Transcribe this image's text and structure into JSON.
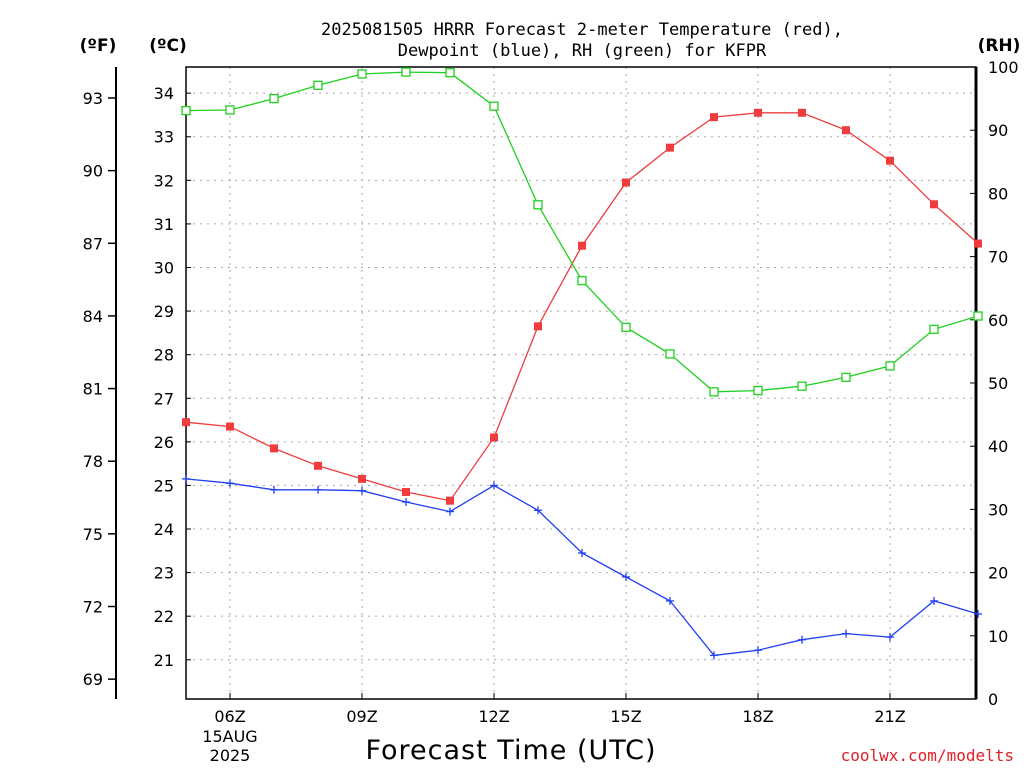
{
  "title": {
    "line1": "2025081505 HRRR Forecast 2-meter Temperature (red),",
    "line2": "Dewpoint (blue), RH (green) for KFPR"
  },
  "units": {
    "fahrenheit": "(ºF)",
    "celsius": "(ºC)",
    "rh": "(RH)"
  },
  "xaxis_title": "Forecast Time (UTC)",
  "credit": "coolwx.com/modelts",
  "colors": {
    "temperature": "#f03c3c",
    "dewpoint": "#2040f0",
    "rh": "#20d020"
  },
  "chart_data": {
    "type": "line",
    "title": "2025081505 HRRR Forecast 2-meter Temperature (red), Dewpoint (blue), RH (green) for KFPR",
    "xlabel": "Forecast Time (UTC)",
    "ylabel_left": "(ºC)",
    "ylabel_left_outer": "(ºF)",
    "ylabel_right": "(RH)",
    "x": [
      "05Z",
      "06Z",
      "07Z",
      "08Z",
      "09Z",
      "10Z",
      "11Z",
      "12Z",
      "13Z",
      "14Z",
      "15Z",
      "16Z",
      "17Z",
      "18Z",
      "19Z",
      "20Z",
      "21Z",
      "22Z",
      "23Z"
    ],
    "x_ticks": [
      {
        "label": "06Z",
        "sub": [
          "15AUG",
          "2025"
        ]
      },
      {
        "label": "09Z"
      },
      {
        "label": "12Z"
      },
      {
        "label": "15Z"
      },
      {
        "label": "18Z"
      },
      {
        "label": "21Z"
      }
    ],
    "celsius_ticks": [
      "21",
      "22",
      "23",
      "24",
      "25",
      "26",
      "27",
      "28",
      "29",
      "30",
      "31",
      "32",
      "33",
      "34"
    ],
    "fahrenheit_ticks": [
      "69",
      "72",
      "75",
      "78",
      "81",
      "84",
      "87",
      "90",
      "93"
    ],
    "rh_ticks": [
      "0",
      "10",
      "20",
      "30",
      "40",
      "50",
      "60",
      "70",
      "80",
      "90",
      "100"
    ],
    "ylim_celsius": [
      20.1,
      34.6
    ],
    "ylim_rh": [
      0,
      100
    ],
    "grid": true,
    "series": [
      {
        "name": "Temperature",
        "axis": "celsius",
        "marker": "filled-square",
        "values": [
          26.45,
          26.35,
          25.85,
          25.45,
          25.15,
          24.85,
          24.65,
          26.1,
          28.65,
          30.5,
          31.95,
          32.75,
          33.45,
          33.55,
          33.55,
          33.15,
          32.45,
          31.45,
          30.55
        ]
      },
      {
        "name": "Dewpoint",
        "axis": "celsius",
        "marker": "plus",
        "values": [
          25.15,
          25.05,
          24.9,
          24.9,
          24.88,
          24.62,
          24.4,
          25.0,
          24.43,
          23.45,
          22.9,
          22.35,
          21.1,
          21.22,
          21.46,
          21.6,
          21.52,
          22.35,
          22.05
        ]
      },
      {
        "name": "RH",
        "axis": "rh",
        "marker": "open-square",
        "values": [
          93.1,
          93.2,
          95.0,
          97.1,
          98.9,
          99.2,
          99.1,
          93.8,
          78.2,
          66.2,
          58.8,
          54.6,
          48.6,
          48.8,
          49.5,
          50.9,
          52.7,
          58.5,
          60.6
        ]
      }
    ]
  }
}
